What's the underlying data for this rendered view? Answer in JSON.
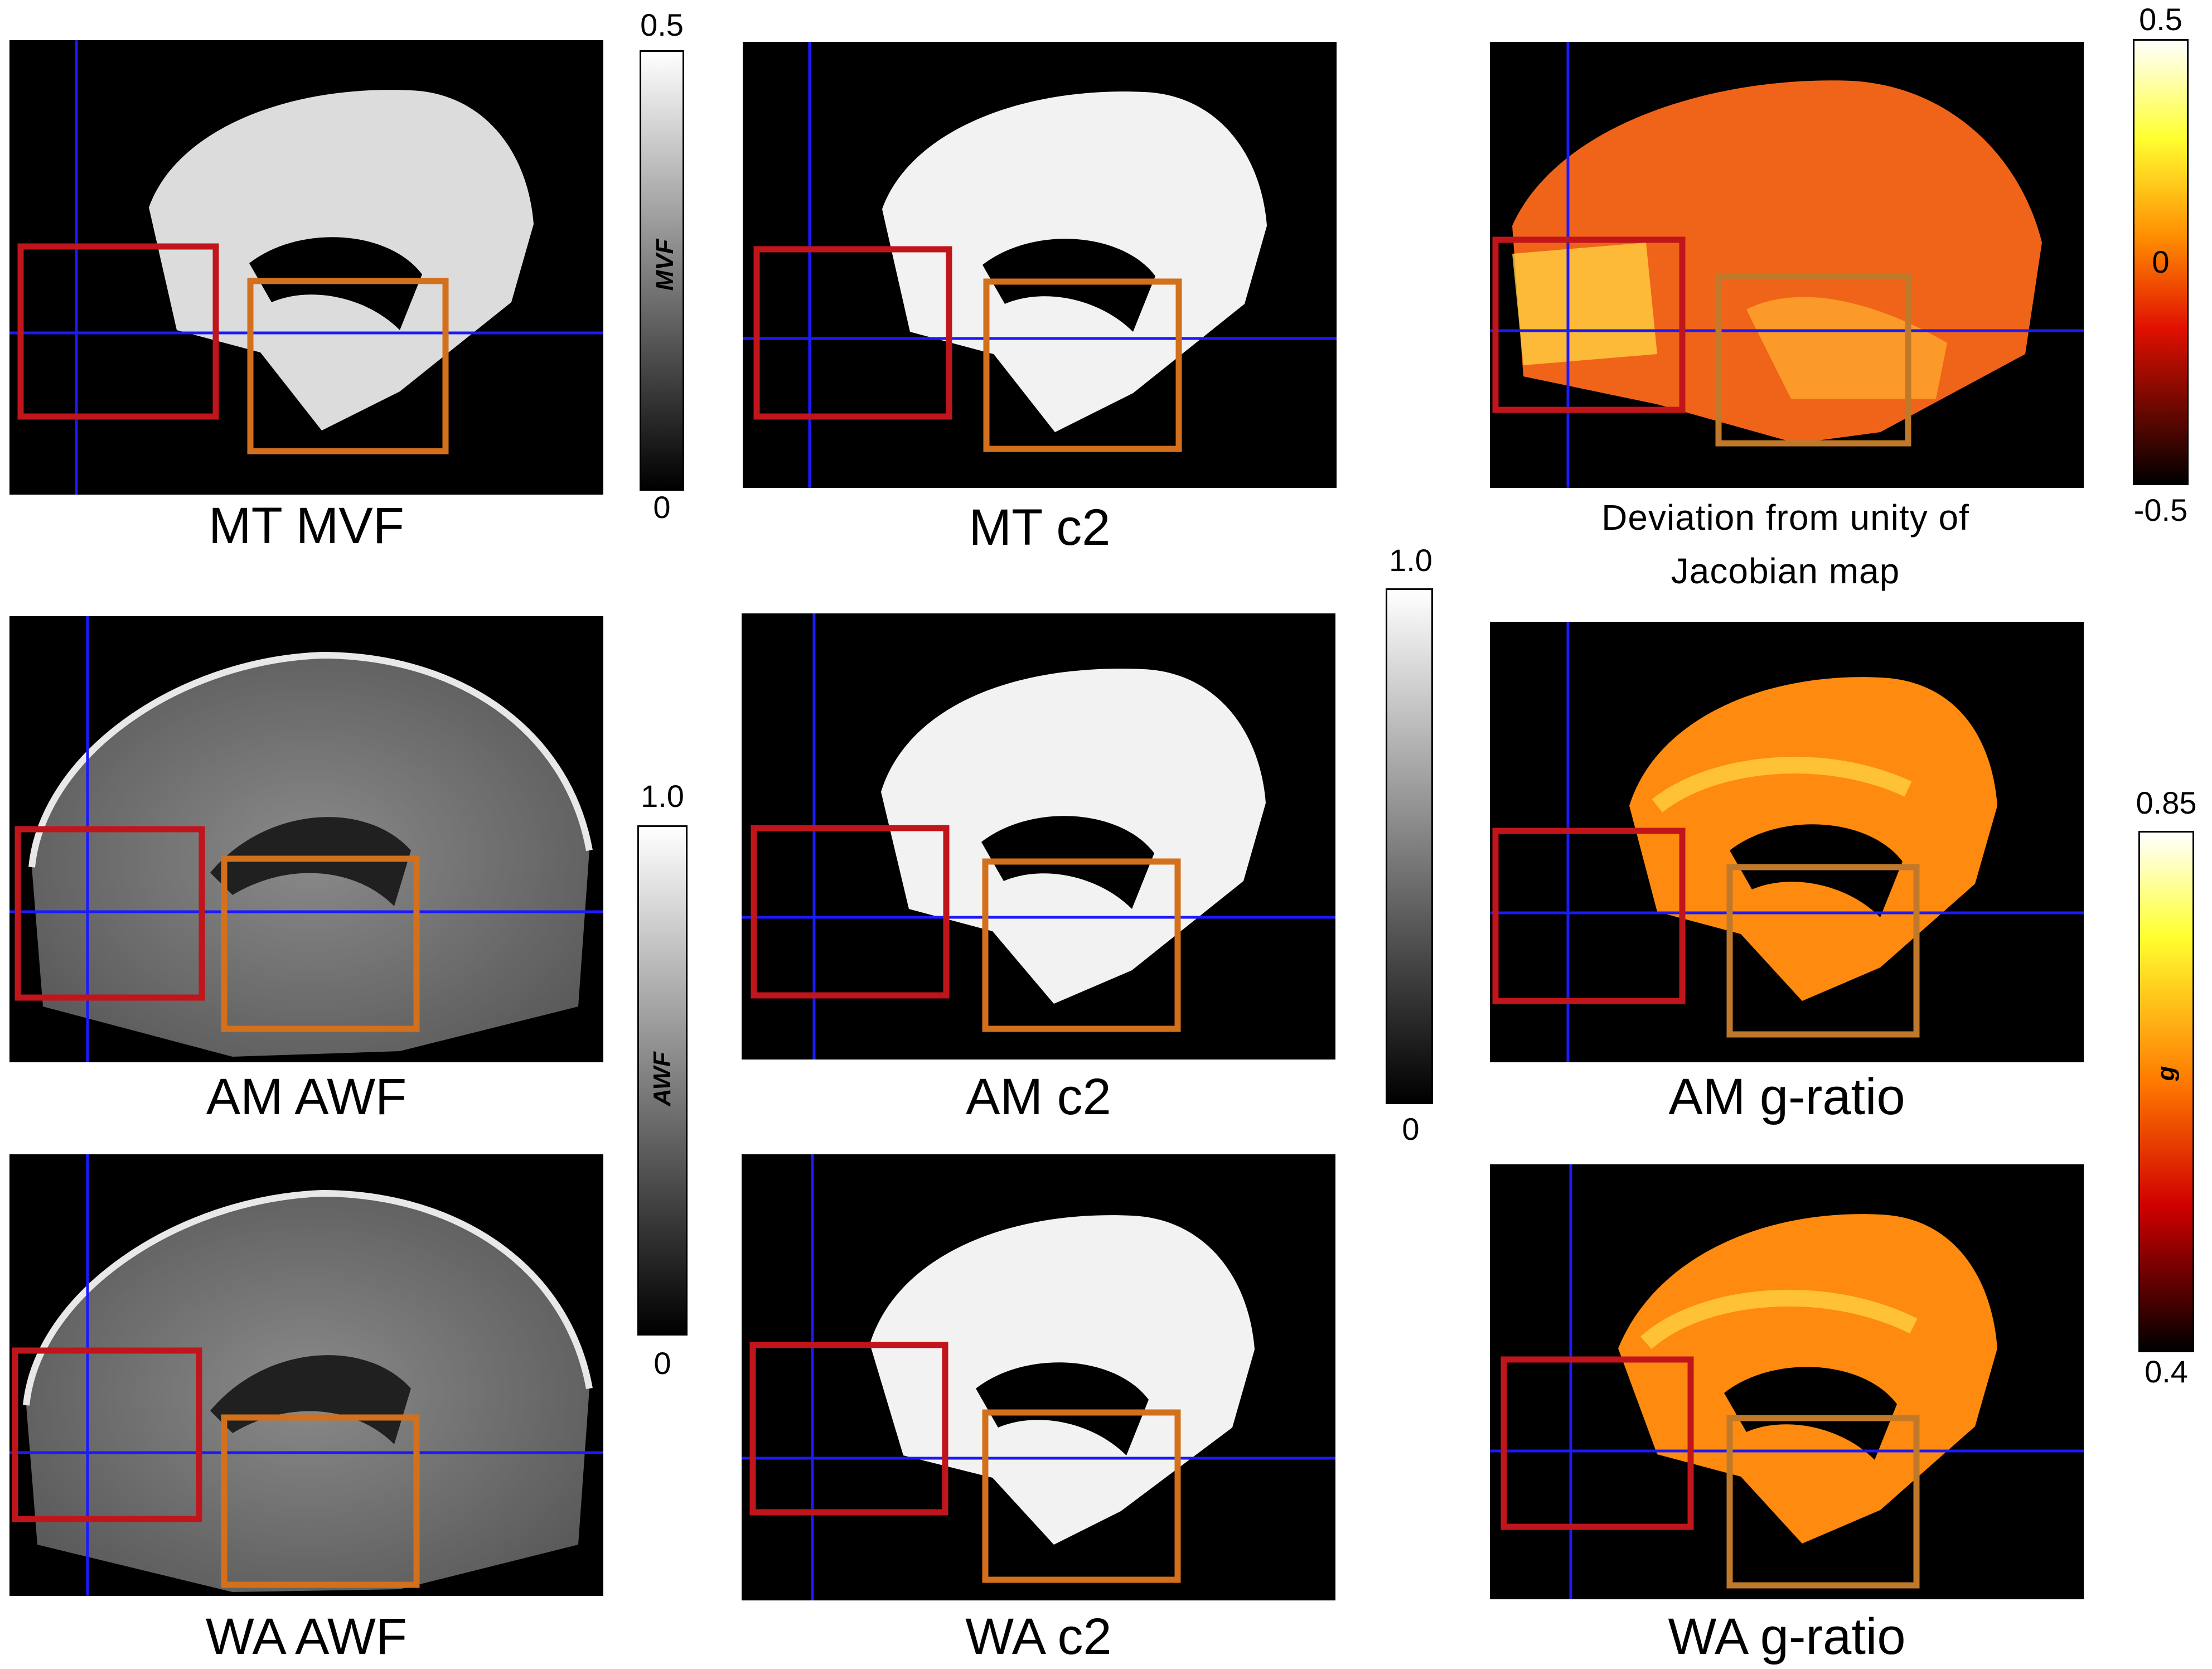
{
  "captions": {
    "mt_mvf": "MT MVF",
    "mt_c2": "MT c2",
    "jacobian": "Deviation from unity of Jacobian map",
    "am_awf": "AM AWF",
    "am_c2": "AM c2",
    "am_g": "AM g-ratio",
    "wa_awf": "WA AWF",
    "wa_c2": "WA c2",
    "wa_g": "WA g-ratio"
  },
  "colorbars": {
    "mvf": {
      "top": "0.5",
      "bottom": "0",
      "label": "MVF"
    },
    "awf": {
      "top": "1.0",
      "bottom": "0",
      "label": "AWF"
    },
    "c2": {
      "top": "1.0",
      "bottom": "0"
    },
    "jacobian": {
      "top": "0.5",
      "middle": "0",
      "bottom": "-0.5"
    },
    "g": {
      "top": "0.85",
      "bottom": "0.4",
      "label": "g"
    }
  },
  "colors": {
    "crosshair": "#1a1aff",
    "roi_red": "#c0151b",
    "roi_orange": "#d2701c"
  }
}
